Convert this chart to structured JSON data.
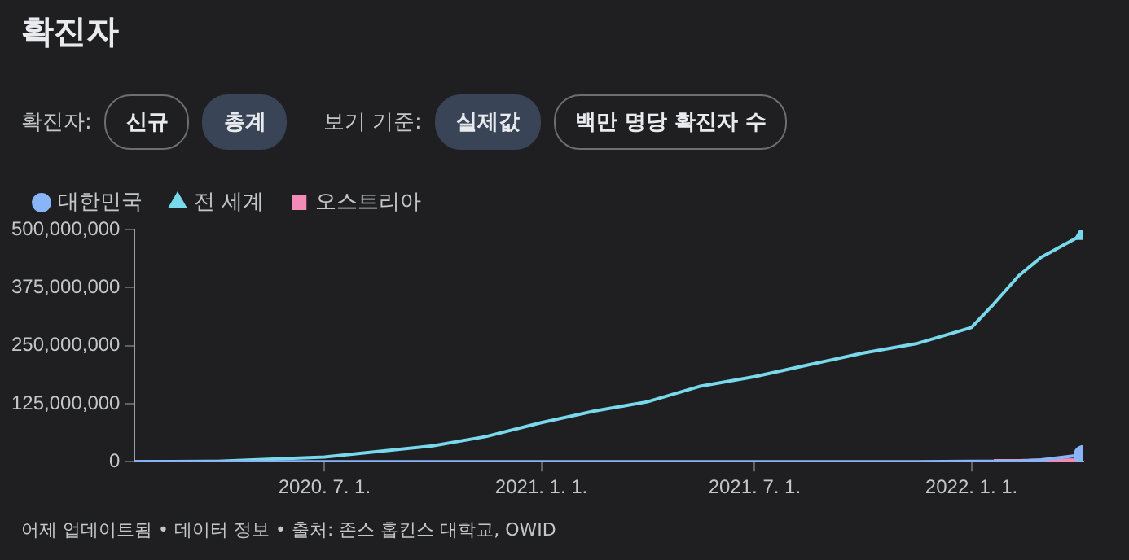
{
  "chart_data": {
    "type": "line",
    "title": "확진자",
    "x": [
      "2020-01-22",
      "2020-04-01",
      "2020-07-01",
      "2020-10-01",
      "2020-11-15",
      "2021-01-01",
      "2021-02-15",
      "2021-04-01",
      "2021-05-15",
      "2021-07-01",
      "2021-08-15",
      "2021-10-01",
      "2021-11-15",
      "2022-01-01",
      "2022-01-20",
      "2022-02-10",
      "2022-03-01",
      "2022-04-06"
    ],
    "series": [
      {
        "name": "대한민국",
        "color": "#8ab4f8",
        "values": [
          0,
          0,
          0,
          0,
          0,
          0,
          0,
          0,
          0,
          0,
          0,
          0,
          0,
          1000000,
          1000000,
          1000000,
          4000000,
          15000000
        ]
      },
      {
        "name": "전 세계",
        "color": "#78d9ec",
        "values": [
          0,
          1000000,
          10000000,
          34000000,
          54000000,
          84000000,
          109000000,
          129000000,
          162000000,
          183000000,
          208000000,
          234000000,
          254000000,
          289000000,
          340000000,
          400000000,
          440000000,
          490000000
        ]
      },
      {
        "name": "오스트리아",
        "color": "#f28bb8",
        "values": [
          null,
          null,
          null,
          null,
          null,
          null,
          null,
          null,
          null,
          null,
          null,
          null,
          null,
          null,
          2000000,
          2000000,
          3000000,
          4000000
        ]
      }
    ],
    "xlim": [
      "2020-01-22",
      "2022-04-06"
    ],
    "xticks": [
      {
        "value": "2020-07-01",
        "label": "2020. 7. 1."
      },
      {
        "value": "2021-01-01",
        "label": "2021. 1. 1."
      },
      {
        "value": "2021-07-01",
        "label": "2021. 7. 1."
      },
      {
        "value": "2022-01-01",
        "label": "2022. 1. 1."
      }
    ],
    "ylim": [
      0,
      500000000
    ],
    "yticks": [
      0,
      {
        "value": 125000000,
        "label": "125,000,000"
      },
      {
        "value": 250000000,
        "label": "250,000,000"
      },
      {
        "value": 375000000,
        "label": "375,000,000"
      },
      {
        "value": 500000000,
        "label": "500,000,000"
      }
    ],
    "grid": false,
    "legend": "top left",
    "annotations": [
      "확진자:",
      "신규",
      "총계",
      "보기 기준:",
      "실제값",
      "백만 명당 확진자 수",
      "어제 업데이트됨 • 데이터 정보 • 출처: 존스 홉킨스 대학교, OWID"
    ]
  }
}
